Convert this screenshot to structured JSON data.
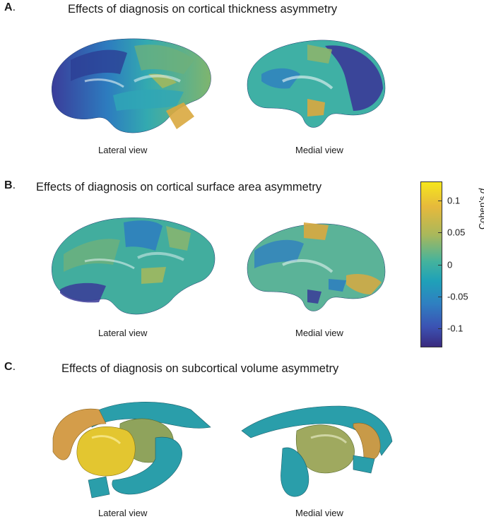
{
  "panels": [
    {
      "letter": "A",
      "title": "Effects of diagnosis on cortical thickness asymmetry",
      "lateral_label": "Lateral view",
      "medial_label": "Medial view"
    },
    {
      "letter": "B",
      "title": "Effects of diagnosis on cortical surface area asymmetry",
      "lateral_label": "Lateral view",
      "medial_label": "Medial view"
    },
    {
      "letter": "C",
      "title": "Effects of diagnosis on subcortical volume asymmetry",
      "lateral_label": "Lateral view",
      "medial_label": "Medial view"
    }
  ],
  "colorbar": {
    "label_prefix": "Cohen's ",
    "label_symbol": "d",
    "ticks": [
      "0.1",
      "0.05",
      "0",
      "-0.05",
      "-0.1"
    ],
    "range": [
      -0.13,
      0.13
    ],
    "colors": [
      "#f6e61d",
      "#e6b93c",
      "#a9b85b",
      "#45b39c",
      "#1fa1b8",
      "#2f7fc1",
      "#3b52b3",
      "#3a2a7e"
    ]
  }
}
